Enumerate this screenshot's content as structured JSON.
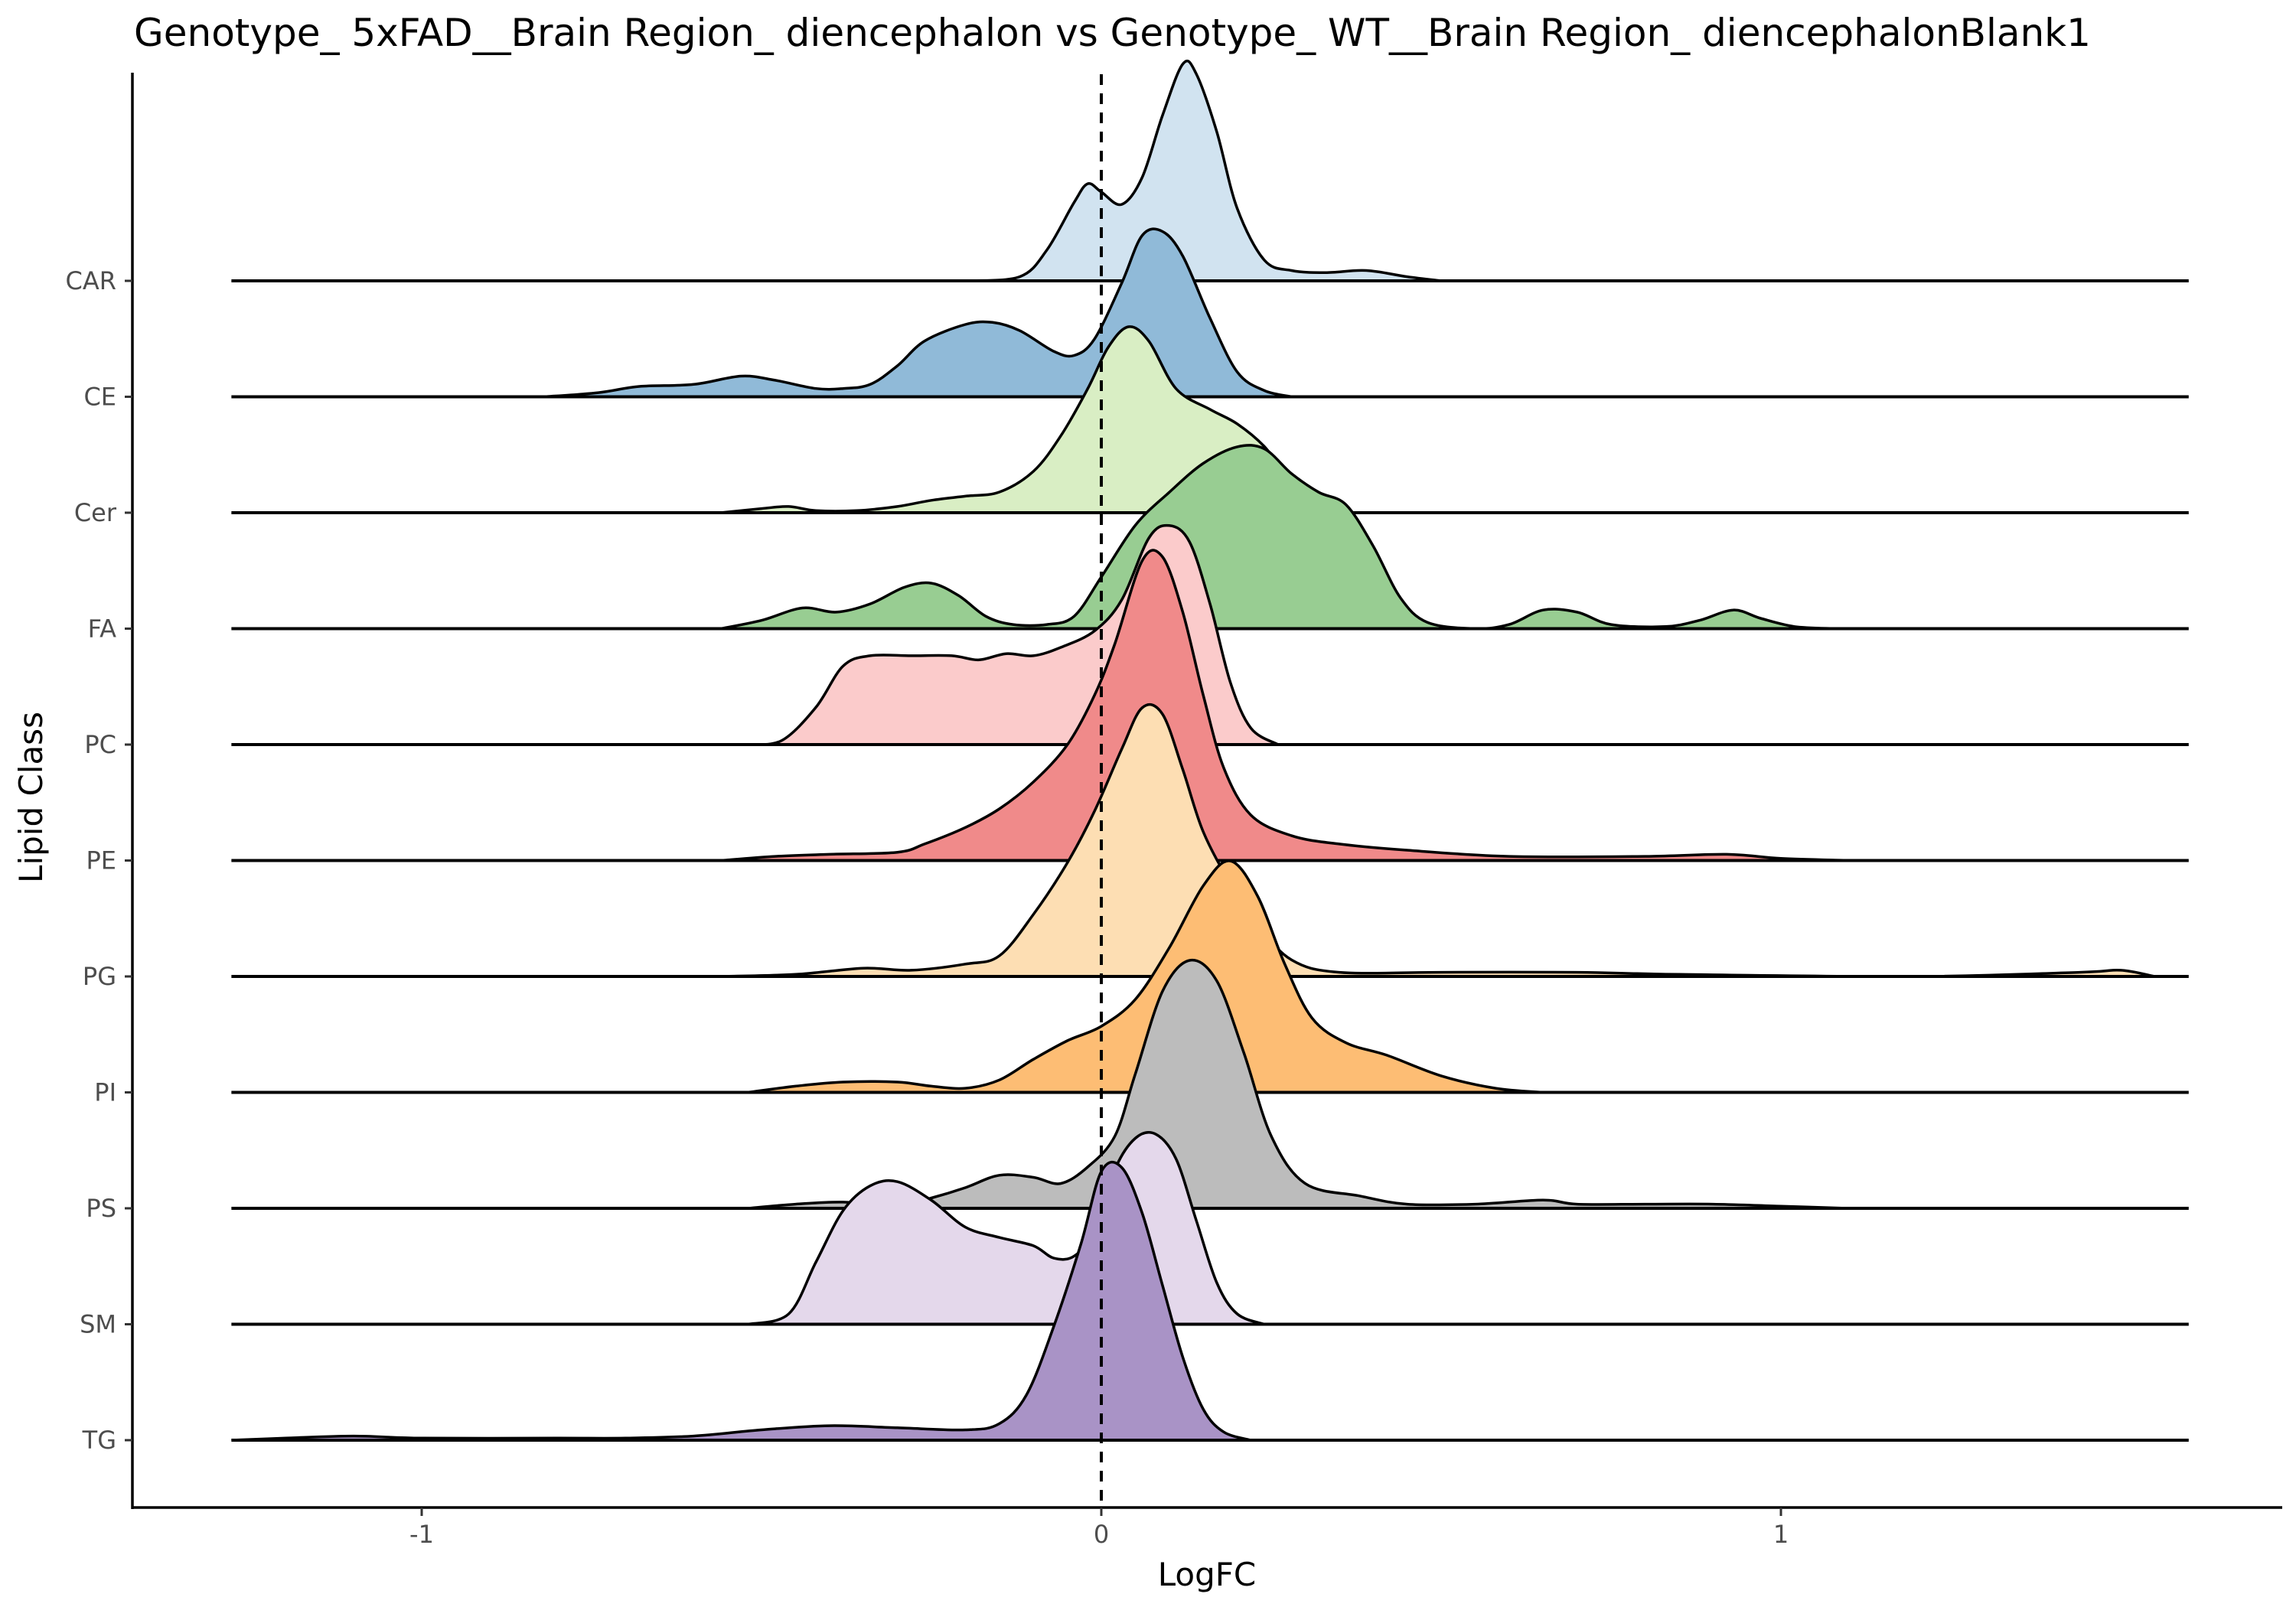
{
  "chart_data": {
    "type": "ridgeline",
    "title": "Genotype_ 5xFAD__Brain Region_ diencephalon vs Genotype_ WT__Brain Region_ diencephalonBlank1",
    "xlabel": "LogFC",
    "ylabel": "Lipid Class",
    "xlim": [
      -1.4,
      1.7
    ],
    "x_ticks": [
      -1,
      0,
      1
    ],
    "x_tick_labels": [
      "-1",
      "0",
      "1"
    ],
    "reference_line": {
      "x": 0,
      "style": "dashed"
    },
    "grid": false,
    "legend": "none",
    "categories": [
      "CAR",
      "CE",
      "Cer",
      "FA",
      "PC",
      "PE",
      "PG",
      "PI",
      "PS",
      "SM",
      "TG"
    ],
    "x_support": [
      -1.28,
      1.6
    ],
    "series": [
      {
        "name": "CAR",
        "color": "#d1e3f0",
        "points": [
          [
            -0.2,
            0
          ],
          [
            -0.12,
            0.02
          ],
          [
            -0.08,
            0.15
          ],
          [
            -0.04,
            0.38
          ],
          [
            -0.02,
            0.47
          ],
          [
            0.0,
            0.43
          ],
          [
            0.03,
            0.37
          ],
          [
            0.06,
            0.5
          ],
          [
            0.09,
            0.8
          ],
          [
            0.12,
            1.05
          ],
          [
            0.14,
            1.0
          ],
          [
            0.17,
            0.72
          ],
          [
            0.2,
            0.35
          ],
          [
            0.24,
            0.1
          ],
          [
            0.28,
            0.05
          ],
          [
            0.33,
            0.04
          ],
          [
            0.39,
            0.05
          ],
          [
            0.45,
            0.02
          ],
          [
            0.5,
            0
          ]
        ]
      },
      {
        "name": "CE",
        "color": "#90bad8",
        "points": [
          [
            -0.82,
            0
          ],
          [
            -0.74,
            0.02
          ],
          [
            -0.68,
            0.05
          ],
          [
            -0.6,
            0.06
          ],
          [
            -0.53,
            0.1
          ],
          [
            -0.48,
            0.08
          ],
          [
            -0.42,
            0.04
          ],
          [
            -0.38,
            0.04
          ],
          [
            -0.34,
            0.06
          ],
          [
            -0.3,
            0.15
          ],
          [
            -0.26,
            0.27
          ],
          [
            -0.2,
            0.35
          ],
          [
            -0.16,
            0.36
          ],
          [
            -0.12,
            0.32
          ],
          [
            -0.07,
            0.22
          ],
          [
            -0.04,
            0.2
          ],
          [
            -0.01,
            0.28
          ],
          [
            0.03,
            0.55
          ],
          [
            0.06,
            0.78
          ],
          [
            0.09,
            0.8
          ],
          [
            0.12,
            0.68
          ],
          [
            0.16,
            0.38
          ],
          [
            0.2,
            0.12
          ],
          [
            0.24,
            0.03
          ],
          [
            0.28,
            0
          ]
        ]
      },
      {
        "name": "Cer",
        "color": "#d9eec4",
        "points": [
          [
            -0.56,
            0
          ],
          [
            -0.5,
            0.02
          ],
          [
            -0.46,
            0.03
          ],
          [
            -0.42,
            0.01
          ],
          [
            -0.36,
            0.01
          ],
          [
            -0.3,
            0.03
          ],
          [
            -0.25,
            0.06
          ],
          [
            -0.2,
            0.08
          ],
          [
            -0.15,
            0.1
          ],
          [
            -0.1,
            0.2
          ],
          [
            -0.06,
            0.37
          ],
          [
            -0.02,
            0.6
          ],
          [
            0.01,
            0.8
          ],
          [
            0.04,
            0.9
          ],
          [
            0.07,
            0.83
          ],
          [
            0.11,
            0.6
          ],
          [
            0.16,
            0.5
          ],
          [
            0.2,
            0.43
          ],
          [
            0.24,
            0.32
          ],
          [
            0.28,
            0.15
          ],
          [
            0.32,
            0.04
          ],
          [
            0.36,
            0
          ]
        ]
      },
      {
        "name": "FA",
        "color": "#98cd92",
        "points": [
          [
            -0.56,
            0
          ],
          [
            -0.5,
            0.04
          ],
          [
            -0.44,
            0.1
          ],
          [
            -0.39,
            0.08
          ],
          [
            -0.34,
            0.12
          ],
          [
            -0.29,
            0.2
          ],
          [
            -0.25,
            0.22
          ],
          [
            -0.21,
            0.16
          ],
          [
            -0.17,
            0.06
          ],
          [
            -0.13,
            0.02
          ],
          [
            -0.08,
            0.02
          ],
          [
            -0.04,
            0.06
          ],
          [
            0.0,
            0.25
          ],
          [
            0.05,
            0.5
          ],
          [
            0.1,
            0.66
          ],
          [
            0.15,
            0.8
          ],
          [
            0.2,
            0.88
          ],
          [
            0.24,
            0.87
          ],
          [
            0.28,
            0.75
          ],
          [
            0.32,
            0.66
          ],
          [
            0.36,
            0.6
          ],
          [
            0.4,
            0.4
          ],
          [
            0.44,
            0.15
          ],
          [
            0.48,
            0.03
          ],
          [
            0.55,
            0.0
          ],
          [
            0.6,
            0.02
          ],
          [
            0.65,
            0.09
          ],
          [
            0.7,
            0.08
          ],
          [
            0.75,
            0.02
          ],
          [
            0.83,
            0.01
          ],
          [
            0.88,
            0.04
          ],
          [
            0.93,
            0.09
          ],
          [
            0.97,
            0.05
          ],
          [
            1.02,
            0.01
          ],
          [
            1.08,
            0
          ]
        ]
      },
      {
        "name": "PC",
        "color": "#fbcbcb",
        "points": [
          [
            -0.52,
            0
          ],
          [
            -0.47,
            0.02
          ],
          [
            -0.42,
            0.18
          ],
          [
            -0.38,
            0.38
          ],
          [
            -0.34,
            0.43
          ],
          [
            -0.28,
            0.43
          ],
          [
            -0.22,
            0.43
          ],
          [
            -0.18,
            0.41
          ],
          [
            -0.14,
            0.44
          ],
          [
            -0.1,
            0.43
          ],
          [
            -0.06,
            0.47
          ],
          [
            -0.01,
            0.55
          ],
          [
            0.03,
            0.7
          ],
          [
            0.07,
            1.0
          ],
          [
            0.1,
            1.06
          ],
          [
            0.13,
            0.98
          ],
          [
            0.16,
            0.68
          ],
          [
            0.19,
            0.3
          ],
          [
            0.22,
            0.08
          ],
          [
            0.26,
            0
          ]
        ]
      },
      {
        "name": "PE",
        "color": "#f08a8a",
        "points": [
          [
            -0.56,
            0
          ],
          [
            -0.48,
            0.02
          ],
          [
            -0.4,
            0.03
          ],
          [
            -0.3,
            0.04
          ],
          [
            -0.26,
            0.08
          ],
          [
            -0.2,
            0.16
          ],
          [
            -0.15,
            0.25
          ],
          [
            -0.1,
            0.38
          ],
          [
            -0.05,
            0.56
          ],
          [
            -0.01,
            0.8
          ],
          [
            0.02,
            1.05
          ],
          [
            0.06,
            1.45
          ],
          [
            0.09,
            1.47
          ],
          [
            0.12,
            1.2
          ],
          [
            0.15,
            0.8
          ],
          [
            0.18,
            0.45
          ],
          [
            0.22,
            0.22
          ],
          [
            0.28,
            0.12
          ],
          [
            0.35,
            0.08
          ],
          [
            0.45,
            0.05
          ],
          [
            0.6,
            0.02
          ],
          [
            0.8,
            0.02
          ],
          [
            0.92,
            0.03
          ],
          [
            1.0,
            0.01
          ],
          [
            1.1,
            0
          ]
        ]
      },
      {
        "name": "PG",
        "color": "#fddeb3",
        "points": [
          [
            -0.56,
            0
          ],
          [
            -0.45,
            0.01
          ],
          [
            -0.35,
            0.04
          ],
          [
            -0.28,
            0.03
          ],
          [
            -0.2,
            0.06
          ],
          [
            -0.15,
            0.1
          ],
          [
            -0.1,
            0.3
          ],
          [
            -0.05,
            0.55
          ],
          [
            -0.01,
            0.8
          ],
          [
            0.03,
            1.1
          ],
          [
            0.06,
            1.3
          ],
          [
            0.09,
            1.27
          ],
          [
            0.12,
            1.0
          ],
          [
            0.15,
            0.7
          ],
          [
            0.19,
            0.45
          ],
          [
            0.23,
            0.25
          ],
          [
            0.28,
            0.08
          ],
          [
            0.35,
            0.02
          ],
          [
            0.5,
            0.02
          ],
          [
            0.7,
            0.02
          ],
          [
            0.85,
            0.01
          ],
          [
            1.2,
            0.0
          ],
          [
            1.44,
            0.02
          ],
          [
            1.5,
            0.03
          ],
          [
            1.55,
            0.0
          ]
        ]
      },
      {
        "name": "PI",
        "color": "#fdbd74",
        "points": [
          [
            -0.52,
            0
          ],
          [
            -0.45,
            0.03
          ],
          [
            -0.38,
            0.05
          ],
          [
            -0.3,
            0.05
          ],
          [
            -0.25,
            0.03
          ],
          [
            -0.2,
            0.02
          ],
          [
            -0.15,
            0.06
          ],
          [
            -0.1,
            0.16
          ],
          [
            -0.05,
            0.25
          ],
          [
            0.0,
            0.32
          ],
          [
            0.05,
            0.45
          ],
          [
            0.1,
            0.7
          ],
          [
            0.15,
            1.0
          ],
          [
            0.19,
            1.12
          ],
          [
            0.23,
            0.95
          ],
          [
            0.27,
            0.62
          ],
          [
            0.31,
            0.36
          ],
          [
            0.36,
            0.24
          ],
          [
            0.42,
            0.18
          ],
          [
            0.5,
            0.08
          ],
          [
            0.58,
            0.02
          ],
          [
            0.65,
            0
          ]
        ]
      },
      {
        "name": "PS",
        "color": "#bcbcbc",
        "points": [
          [
            -0.52,
            0
          ],
          [
            -0.45,
            0.02
          ],
          [
            -0.38,
            0.03
          ],
          [
            -0.3,
            0.01
          ],
          [
            -0.25,
            0.05
          ],
          [
            -0.2,
            0.1
          ],
          [
            -0.15,
            0.16
          ],
          [
            -0.1,
            0.15
          ],
          [
            -0.06,
            0.12
          ],
          [
            -0.02,
            0.2
          ],
          [
            0.02,
            0.35
          ],
          [
            0.05,
            0.65
          ],
          [
            0.09,
            1.05
          ],
          [
            0.13,
            1.2
          ],
          [
            0.17,
            1.1
          ],
          [
            0.21,
            0.75
          ],
          [
            0.25,
            0.35
          ],
          [
            0.3,
            0.12
          ],
          [
            0.38,
            0.06
          ],
          [
            0.45,
            0.02
          ],
          [
            0.55,
            0.02
          ],
          [
            0.65,
            0.04
          ],
          [
            0.7,
            0.02
          ],
          [
            0.8,
            0.02
          ],
          [
            0.9,
            0.02
          ],
          [
            1.0,
            0.01
          ],
          [
            1.1,
            0
          ]
        ]
      },
      {
        "name": "SM",
        "color": "#e4d8eb",
        "points": [
          [
            -0.52,
            0
          ],
          [
            -0.46,
            0.05
          ],
          [
            -0.42,
            0.3
          ],
          [
            -0.38,
            0.55
          ],
          [
            -0.34,
            0.67
          ],
          [
            -0.3,
            0.69
          ],
          [
            -0.25,
            0.6
          ],
          [
            -0.2,
            0.47
          ],
          [
            -0.15,
            0.42
          ],
          [
            -0.1,
            0.38
          ],
          [
            -0.07,
            0.32
          ],
          [
            -0.04,
            0.33
          ],
          [
            -0.01,
            0.45
          ],
          [
            0.02,
            0.75
          ],
          [
            0.05,
            0.9
          ],
          [
            0.08,
            0.92
          ],
          [
            0.11,
            0.8
          ],
          [
            0.14,
            0.5
          ],
          [
            0.17,
            0.2
          ],
          [
            0.2,
            0.05
          ],
          [
            0.24,
            0
          ]
        ]
      },
      {
        "name": "TG",
        "color": "#a993c6",
        "points": [
          [
            -1.28,
            0
          ],
          [
            -1.2,
            0.01
          ],
          [
            -1.1,
            0.02
          ],
          [
            -1.0,
            0.01
          ],
          [
            -0.8,
            0.01
          ],
          [
            -0.7,
            0.01
          ],
          [
            -0.6,
            0.02
          ],
          [
            -0.5,
            0.05
          ],
          [
            -0.4,
            0.07
          ],
          [
            -0.3,
            0.06
          ],
          [
            -0.2,
            0.05
          ],
          [
            -0.15,
            0.08
          ],
          [
            -0.11,
            0.22
          ],
          [
            -0.07,
            0.55
          ],
          [
            -0.03,
            0.95
          ],
          [
            0.0,
            1.3
          ],
          [
            0.03,
            1.32
          ],
          [
            0.06,
            1.1
          ],
          [
            0.09,
            0.75
          ],
          [
            0.12,
            0.4
          ],
          [
            0.15,
            0.15
          ],
          [
            0.18,
            0.04
          ],
          [
            0.22,
            0
          ]
        ]
      }
    ]
  }
}
